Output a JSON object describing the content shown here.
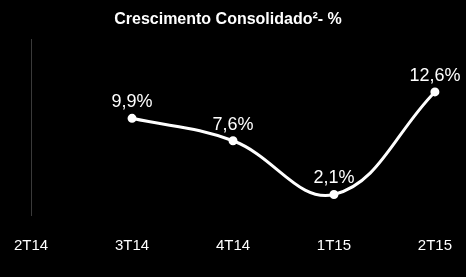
{
  "chart_data": {
    "type": "line",
    "title": "Crescimento Consolidado²- %",
    "categories": [
      "2T14",
      "3T14",
      "4T14",
      "1T15",
      "2T15"
    ],
    "values": [
      null,
      9.9,
      7.6,
      2.1,
      12.6
    ],
    "value_labels": [
      null,
      "9,9%",
      "7,6%",
      "2,1%",
      "12,6%"
    ],
    "color": "#ffffff",
    "marker": "circle",
    "ylim": [
      0,
      18
    ],
    "grid": false,
    "data_labels": true,
    "tick_labels": "x"
  }
}
